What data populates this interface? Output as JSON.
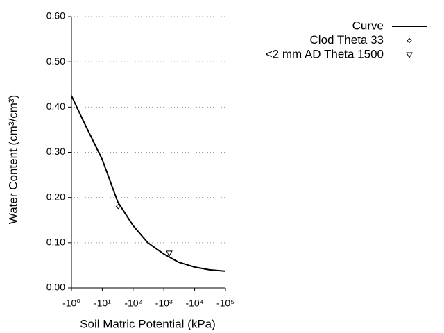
{
  "chart_data": {
    "type": "line",
    "xlabel": "Soil Matric Potential (kPa)",
    "ylabel": "Water Content (cm³/cm³)",
    "xscale": "log",
    "xlim": [
      -1,
      -100000
    ],
    "xticks": [
      {
        "value": -1,
        "label": "-10⁰"
      },
      {
        "value": -10,
        "label": "-10¹"
      },
      {
        "value": -100,
        "label": "-10²"
      },
      {
        "value": -1000,
        "label": "-10³"
      },
      {
        "value": -10000,
        "label": "-10⁴"
      },
      {
        "value": -100000,
        "label": "-10⁵"
      }
    ],
    "ylim": [
      0,
      0.6
    ],
    "yticks": [
      {
        "value": 0,
        "label": "0.00"
      },
      {
        "value": 0.1,
        "label": "0.10"
      },
      {
        "value": 0.2,
        "label": "0.20"
      },
      {
        "value": 0.3,
        "label": "0.30"
      },
      {
        "value": 0.4,
        "label": "0.40"
      },
      {
        "value": 0.5,
        "label": "0.50"
      },
      {
        "value": 0.6,
        "label": "0.60"
      }
    ],
    "grid": true,
    "legend": "top-right",
    "series": [
      {
        "name": "Curve",
        "color": "#000000",
        "marker": "line",
        "x": [
          -1,
          -2.4,
          -10,
          -32,
          -100,
          -300,
          -1000,
          -3000,
          -10000,
          -30000,
          -100000
        ],
        "values": [
          0.425,
          0.37,
          0.284,
          0.19,
          0.138,
          0.1,
          0.075,
          0.057,
          0.046,
          0.04,
          0.037
        ]
      },
      {
        "name": "Clod Theta 33",
        "color": "#000000",
        "marker": "diamond",
        "x": [
          -33
        ],
        "values": [
          0.18
        ]
      },
      {
        "name": "<2 mm AD Theta 1500",
        "color": "#000000",
        "marker": "triangle-down",
        "x": [
          -1500
        ],
        "values": [
          0.077
        ]
      }
    ]
  }
}
